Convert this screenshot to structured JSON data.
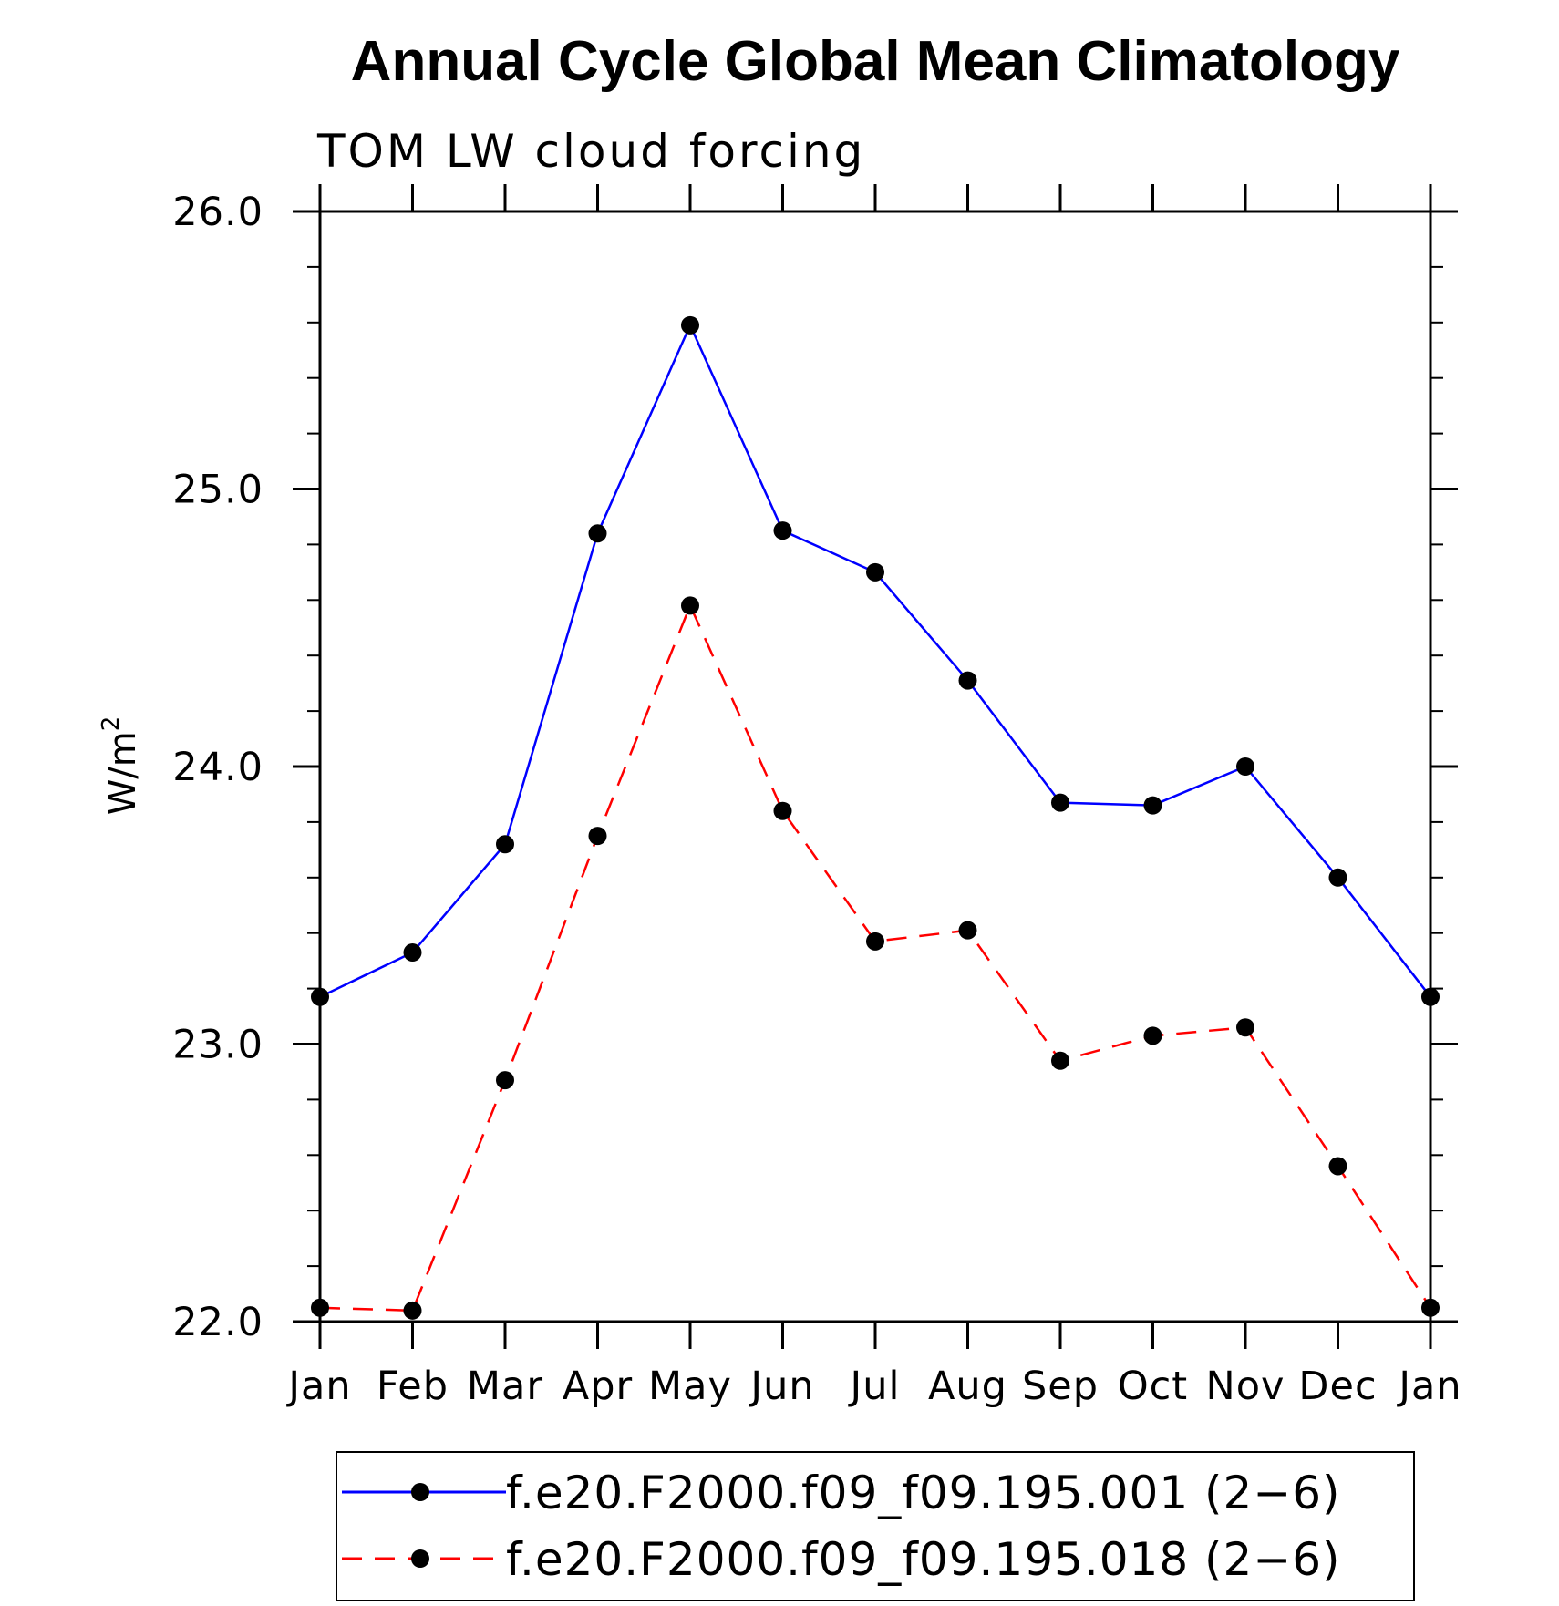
{
  "chart_data": {
    "type": "line",
    "title": "Annual Cycle Global Mean Climatology",
    "subtitle": "TOM LW cloud forcing",
    "ylabel": "W/m",
    "ylabel_superscript": "2",
    "xlabel": "",
    "ylim": [
      22.0,
      26.0
    ],
    "yticks": [
      "22.0",
      "23.0",
      "24.0",
      "25.0",
      "26.0"
    ],
    "categories": [
      "Jan",
      "Feb",
      "Mar",
      "Apr",
      "May",
      "Jun",
      "Jul",
      "Aug",
      "Sep",
      "Oct",
      "Nov",
      "Dec",
      "Jan"
    ],
    "series": [
      {
        "name": "f.e20.F2000.f09_f09.195.001 (2−6)",
        "color": "#0000ff",
        "line_style": "solid",
        "marker": "filled-circle",
        "values": [
          23.17,
          23.33,
          23.72,
          24.84,
          25.59,
          24.85,
          24.7,
          24.31,
          23.87,
          23.86,
          24.0,
          23.6,
          23.17
        ]
      },
      {
        "name": "f.e20.F2000.f09_f09.195.018 (2−6)",
        "color": "#ff0000",
        "line_style": "dashed",
        "marker": "filled-circle",
        "values": [
          22.05,
          22.04,
          22.87,
          23.75,
          24.58,
          23.84,
          23.37,
          23.41,
          22.94,
          23.03,
          23.06,
          22.56,
          22.05
        ]
      }
    ],
    "grid": false,
    "legend_position": "bottom"
  }
}
